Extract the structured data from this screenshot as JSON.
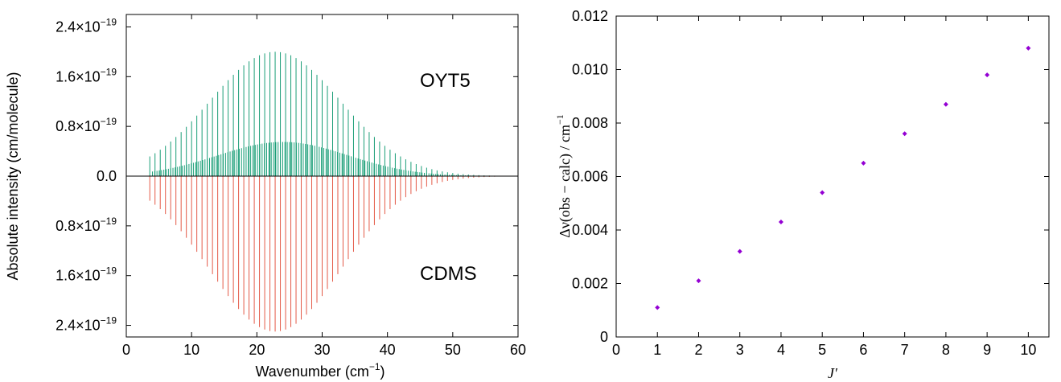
{
  "chart_data": [
    {
      "type": "bar",
      "subtype": "stick-spectrum-mirror",
      "xlabel": "Wavenumber (cm",
      "xlabel_sup": "−1",
      "xlabel_suffix": ")",
      "ylabel": "Absolute intensity (cm/molecule)",
      "xlim": [
        0,
        60
      ],
      "ylim": [
        -2.6e-19,
        2.6e-19
      ],
      "xticks": [
        "0",
        "10",
        "20",
        "30",
        "40",
        "50",
        "60"
      ],
      "yticks": [
        {
          "value": 2.4e-19,
          "mant": "2.4",
          "exp": "−19"
        },
        {
          "value": 1.6e-19,
          "mant": "1.6",
          "exp": "−19"
        },
        {
          "value": 8e-20,
          "mant": "0.8",
          "exp": "−19"
        },
        {
          "value": 0,
          "mant": "0.0",
          "exp": ""
        },
        {
          "value": -8e-20,
          "mant": "0.8",
          "exp": "−19"
        },
        {
          "value": -1.6e-19,
          "mant": "1.6",
          "exp": "−19"
        },
        {
          "value": -2.4e-19,
          "mant": "2.4",
          "exp": "−19"
        }
      ],
      "times_sign": "×10",
      "series": [
        {
          "name": "OYT5",
          "color": "#1a9e77",
          "direction": "up",
          "bands": [
            {
              "x_start": 3.6,
              "x_step": 0.8,
              "count": 68,
              "peak_x": 22.8,
              "sigma": 10.0,
              "peak_value": 2e-19
            },
            {
              "x_start": 4.0,
              "x_step": 0.35,
              "count": 150,
              "peak_x": 24.0,
              "sigma": 10.0,
              "peak_value": 5.5e-20
            }
          ]
        },
        {
          "name": "CDMS",
          "color": "#e45a48",
          "direction": "down",
          "bands": [
            {
              "x_start": 3.6,
              "x_step": 0.8,
              "count": 68,
              "peak_x": 22.8,
              "sigma": 10.0,
              "peak_value": 2.5e-19
            }
          ]
        }
      ],
      "annotations": [
        "OYT5",
        "CDMS"
      ]
    },
    {
      "type": "scatter",
      "xlabel": "J′",
      "ylabel": "Δν(obs − calc) / cm",
      "ylabel_sup": "−1",
      "xlim": [
        0,
        10.5
      ],
      "ylim": [
        0,
        0.012
      ],
      "xticks": [
        "0",
        "1",
        "2",
        "3",
        "4",
        "5",
        "6",
        "7",
        "8",
        "9",
        "10"
      ],
      "yticks": [
        "0",
        "0.002",
        "0.004",
        "0.006",
        "0.008",
        "0.010",
        "0.012"
      ],
      "point_color": "#9400d3",
      "x": [
        1,
        2,
        3,
        4,
        5,
        6,
        7,
        8,
        9,
        10
      ],
      "y": [
        0.0011,
        0.0021,
        0.0032,
        0.0043,
        0.0054,
        0.0065,
        0.0076,
        0.0087,
        0.0098,
        0.0108
      ]
    }
  ]
}
